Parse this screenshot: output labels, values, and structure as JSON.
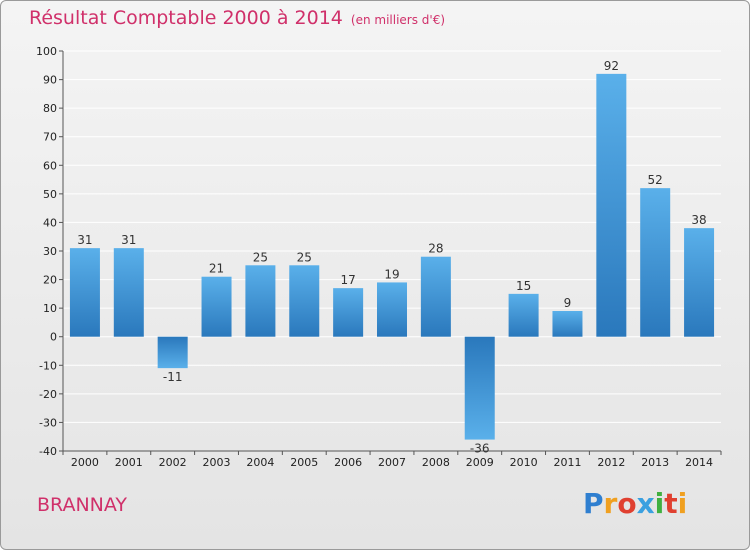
{
  "chart_data": {
    "type": "bar",
    "title": "Résultat Comptable 2000 à 2014",
    "unit": "(en milliers d'€)",
    "categories": [
      "2000",
      "2001",
      "2002",
      "2003",
      "2004",
      "2005",
      "2006",
      "2007",
      "2008",
      "2009",
      "2010",
      "2011",
      "2012",
      "2013",
      "2014"
    ],
    "values": [
      31,
      31,
      -11,
      21,
      25,
      25,
      17,
      19,
      28,
      -36,
      15,
      9,
      92,
      52,
      38
    ],
    "ylim": [
      -40,
      100
    ],
    "yticks": [
      100,
      90,
      80,
      70,
      60,
      50,
      40,
      30,
      20,
      10,
      0,
      -10,
      -20,
      -30,
      -40
    ],
    "ytick_labels": [
      "100",
      "90",
      "80",
      "70",
      "60",
      "50",
      "40",
      "30",
      "20",
      "10",
      "0",
      "-10",
      "-20",
      "-30",
      "-40"
    ],
    "xlabel": "",
    "ylabel": "",
    "grid": true
  },
  "commune": "BRANNAY",
  "logo": {
    "letters": [
      "P",
      "r",
      "o",
      "x",
      "i",
      "t",
      "i"
    ],
    "colors": [
      "#2f7fd0",
      "#f0a020",
      "#e04030",
      "#3aa0e0",
      "#40b040",
      "#e04030",
      "#f0a020"
    ]
  },
  "colors": {
    "title": "#d0306a",
    "bar_light": "#5ab0ea",
    "bar_dark": "#2a78bc",
    "grid": "#ffffff"
  }
}
